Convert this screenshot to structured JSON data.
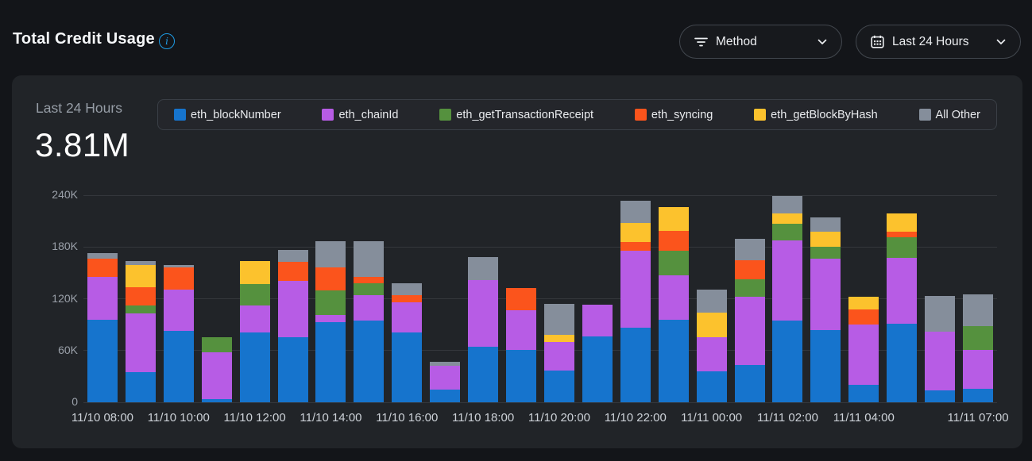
{
  "header": {
    "title": "Total Credit Usage"
  },
  "toolbar": {
    "method_filter": {
      "label": "Method",
      "icon": "filter-icon"
    },
    "time_range": {
      "label": "Last 24 Hours",
      "icon": "calendar-icon"
    }
  },
  "panel": {
    "period_label": "Last 24 Hours",
    "total_value": "3.81M"
  },
  "colors": {
    "page_bg": "#131519",
    "panel_bg": "#212428",
    "accent_blue": "#1e9ce6",
    "gridline": "#34373c"
  },
  "chart_data": {
    "type": "bar",
    "stacked": true,
    "title": "Total Credit Usage",
    "xlabel": "",
    "ylabel": "",
    "ylim": [
      0,
      240000
    ],
    "grid": true,
    "legend_position": "top",
    "categories": [
      "11/10 08:00",
      "11/10 09:00",
      "11/10 10:00",
      "11/10 11:00",
      "11/10 12:00",
      "11/10 13:00",
      "11/10 14:00",
      "11/10 15:00",
      "11/10 16:00",
      "11/10 17:00",
      "11/10 18:00",
      "11/10 19:00",
      "11/10 20:00",
      "11/10 21:00",
      "11/10 22:00",
      "11/10 23:00",
      "11/11 00:00",
      "11/11 01:00",
      "11/11 02:00",
      "11/11 03:00",
      "11/11 04:00",
      "11/11 05:00",
      "11/11 06:00",
      "11/11 07:00"
    ],
    "series": [
      {
        "name": "eth_blockNumber",
        "color": "#1674cd",
        "values": [
          96000,
          35000,
          83000,
          4000,
          81000,
          75000,
          93000,
          95000,
          81000,
          15000,
          64000,
          61000,
          37000,
          76000,
          86000,
          96000,
          36000,
          43000,
          95000,
          84000,
          20000,
          91000,
          14000,
          16000
        ]
      },
      {
        "name": "eth_chainId",
        "color": "#b75ce5",
        "values": [
          49000,
          68000,
          48000,
          54000,
          31000,
          66000,
          8000,
          29000,
          35000,
          27000,
          78000,
          46000,
          33000,
          37000,
          90000,
          51000,
          39000,
          79000,
          93000,
          82000,
          70000,
          76000,
          68000,
          45000
        ]
      },
      {
        "name": "eth_getTransactionReceipt",
        "color": "#55913e",
        "values": [
          0,
          9000,
          0,
          17000,
          25000,
          0,
          29000,
          14000,
          0,
          0,
          0,
          0,
          0,
          0,
          0,
          29000,
          0,
          21000,
          19000,
          14000,
          0,
          24000,
          0,
          27000
        ]
      },
      {
        "name": "eth_syncing",
        "color": "#fb541c",
        "values": [
          21000,
          21000,
          25000,
          0,
          0,
          22000,
          26000,
          7000,
          8000,
          0,
          0,
          25000,
          0,
          0,
          10000,
          23000,
          0,
          22000,
          0,
          0,
          18000,
          7000,
          0,
          0
        ]
      },
      {
        "name": "eth_getBlockByHash",
        "color": "#fcc22d",
        "values": [
          0,
          26000,
          0,
          0,
          27000,
          0,
          0,
          0,
          0,
          0,
          0,
          0,
          8000,
          0,
          22000,
          27000,
          29000,
          0,
          12000,
          18000,
          14000,
          21000,
          0,
          0
        ]
      },
      {
        "name": "All Other",
        "color": "#858e9b",
        "values": [
          7000,
          5000,
          3000,
          0,
          0,
          14000,
          31000,
          42000,
          14000,
          5000,
          26000,
          0,
          36000,
          0,
          26000,
          0,
          27000,
          24000,
          20000,
          16000,
          0,
          0,
          41000,
          37000
        ]
      }
    ],
    "y_ticks": [
      {
        "value": 0,
        "label": "0"
      },
      {
        "value": 60000,
        "label": "60K"
      },
      {
        "value": 120000,
        "label": "120K"
      },
      {
        "value": 180000,
        "label": "180K"
      },
      {
        "value": 240000,
        "label": "240K"
      }
    ],
    "x_tick_labels": [
      {
        "index": 0,
        "label": "11/10 08:00"
      },
      {
        "index": 2,
        "label": "11/10 10:00"
      },
      {
        "index": 4,
        "label": "11/10 12:00"
      },
      {
        "index": 6,
        "label": "11/10 14:00"
      },
      {
        "index": 8,
        "label": "11/10 16:00"
      },
      {
        "index": 10,
        "label": "11/10 18:00"
      },
      {
        "index": 12,
        "label": "11/10 20:00"
      },
      {
        "index": 14,
        "label": "11/10 22:00"
      },
      {
        "index": 16,
        "label": "11/11 00:00"
      },
      {
        "index": 18,
        "label": "11/11 02:00"
      },
      {
        "index": 20,
        "label": "11/11 04:00"
      },
      {
        "index": 23,
        "label": "11/11 07:00"
      }
    ]
  }
}
